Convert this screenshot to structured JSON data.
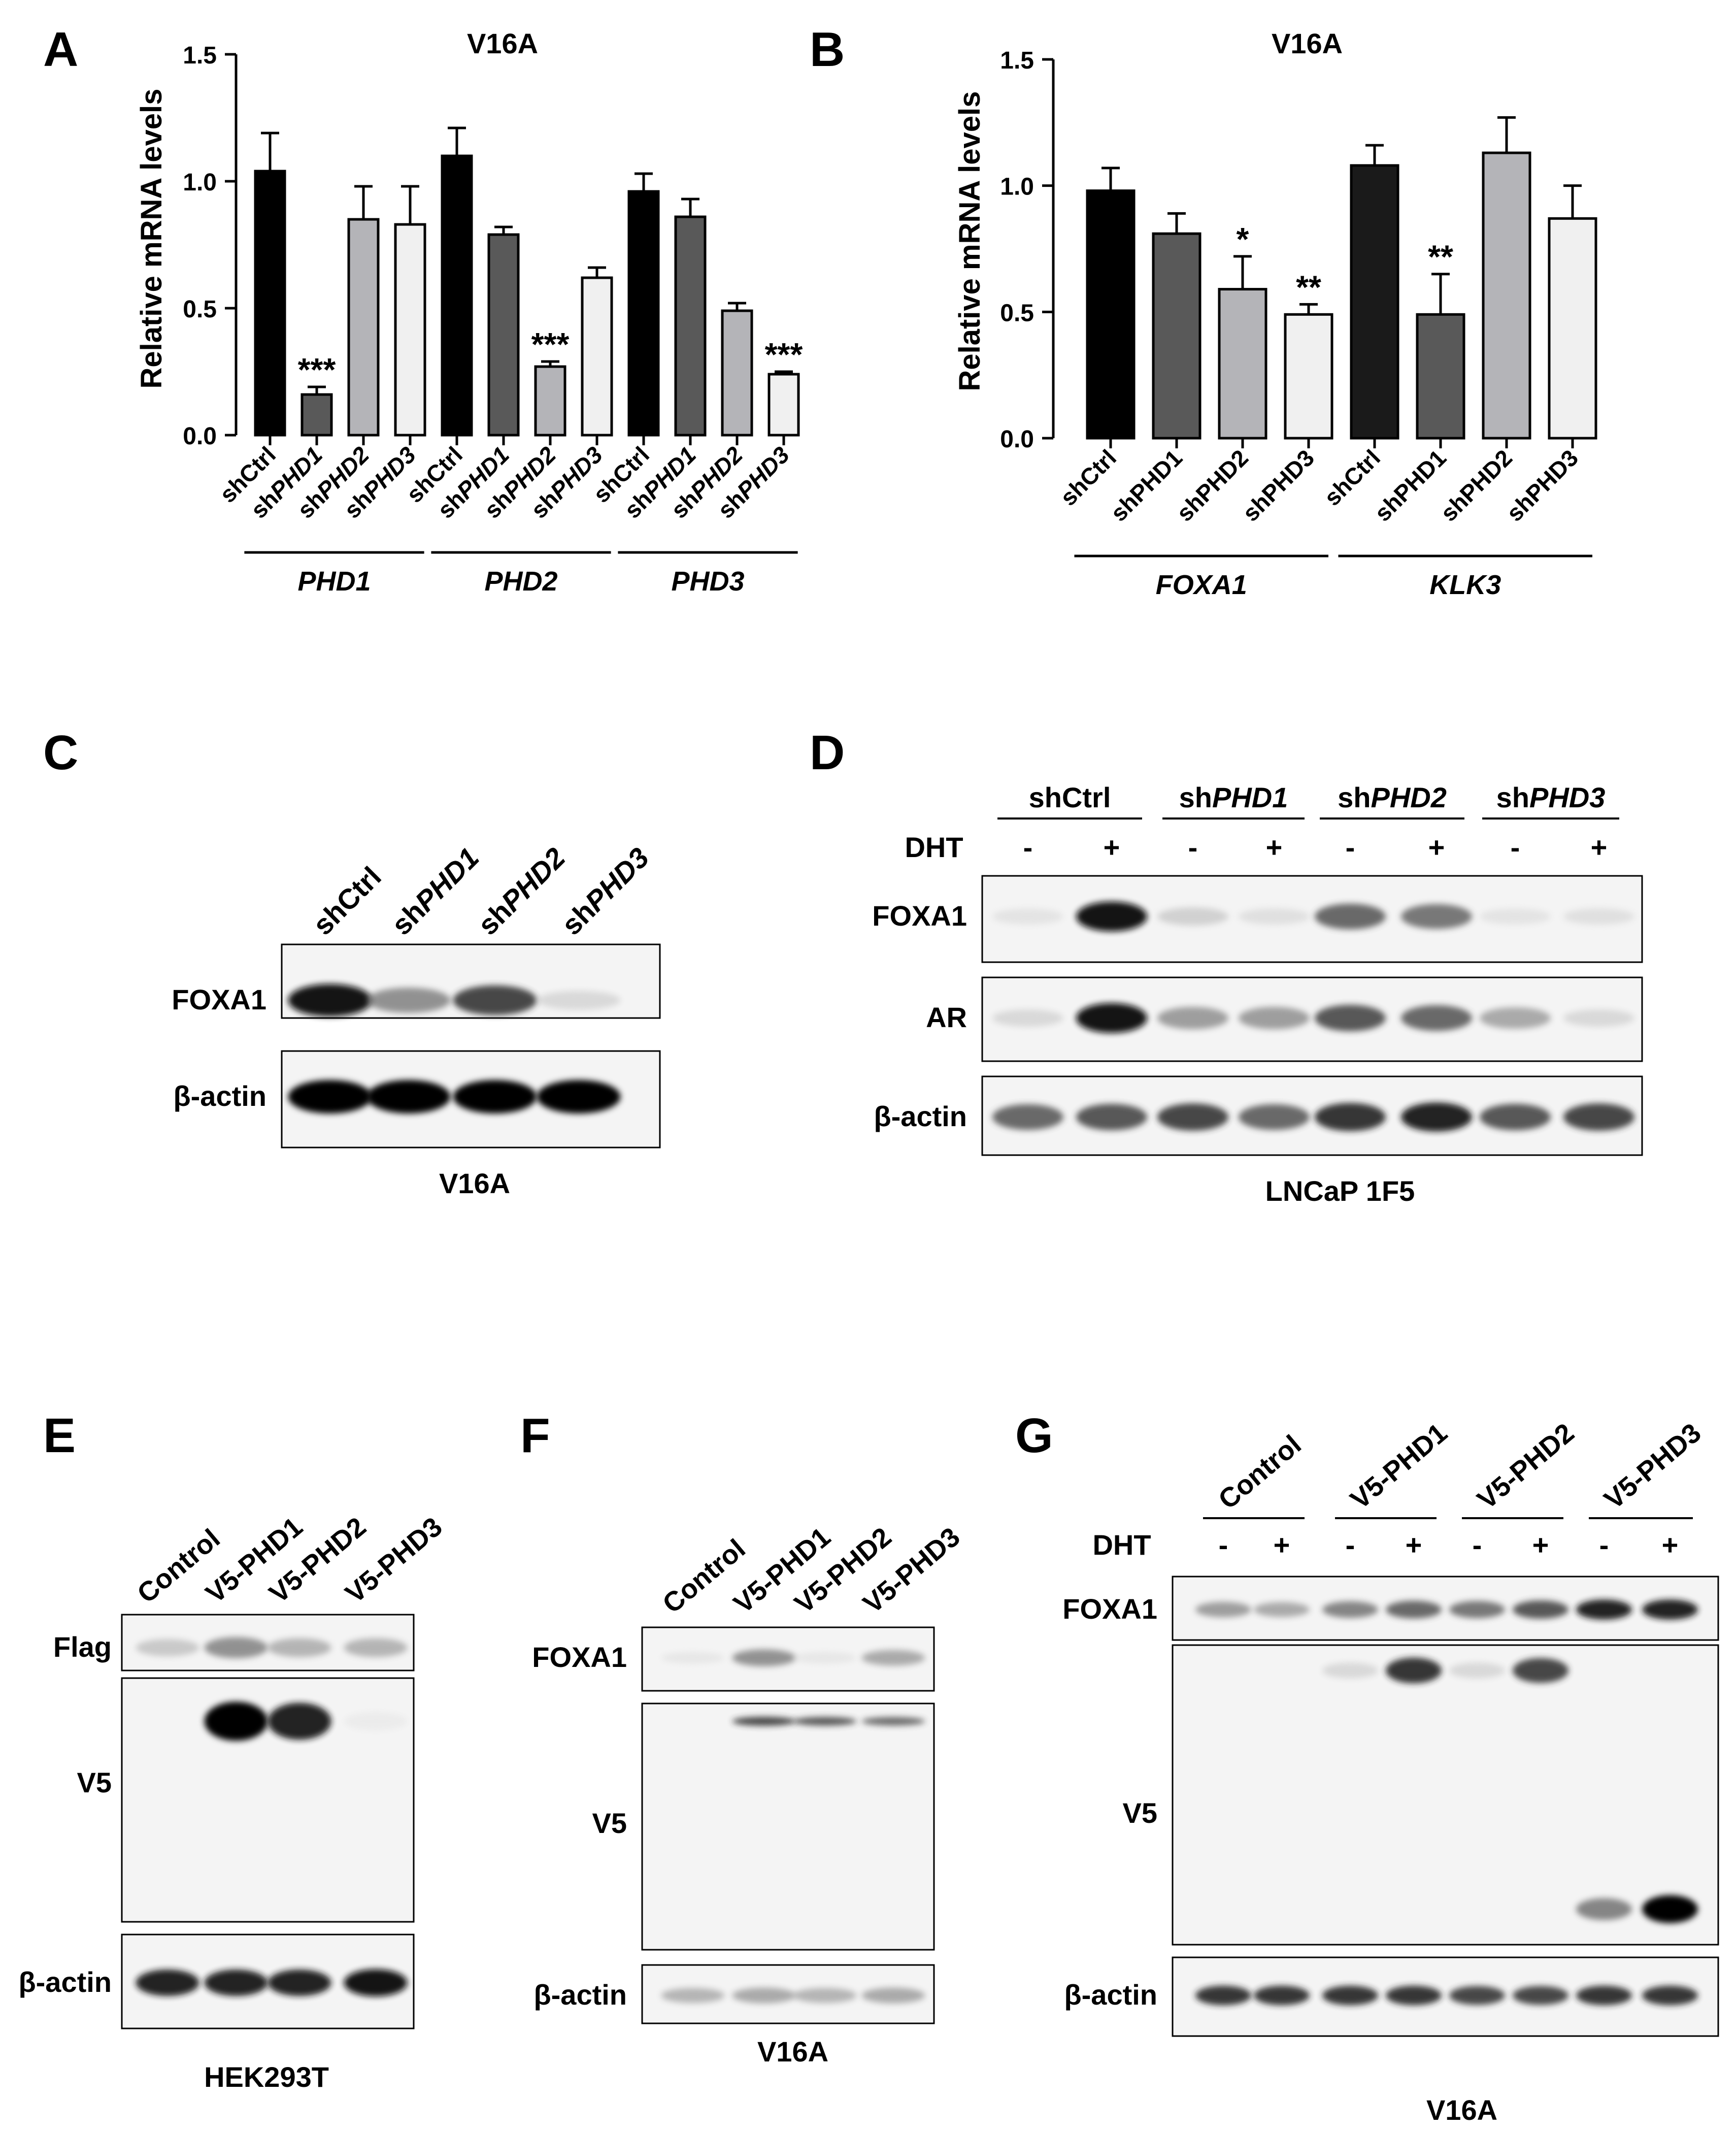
{
  "panels": {
    "A": {
      "letter": "A",
      "chart_data": {
        "type": "bar",
        "title": "V16A",
        "ylabel": "Relative mRNA levels",
        "ylim": [
          0,
          1.5
        ],
        "yticks": [
          "0.0",
          "0.5",
          "1.0",
          "1.5"
        ],
        "groups": [
          {
            "name": "PHD1",
            "italic": true,
            "bars": [
              {
                "prefix": "sh",
                "suffix": "Ctrl",
                "suffix_italic": false,
                "value": 1.04,
                "error": 0.15,
                "fill": "#000000",
                "sig": ""
              },
              {
                "prefix": "sh",
                "suffix": "PHD1",
                "suffix_italic": true,
                "value": 0.16,
                "error": 0.03,
                "fill": "#595959",
                "sig": "***"
              },
              {
                "prefix": "sh",
                "suffix": "PHD2",
                "suffix_italic": true,
                "value": 0.85,
                "error": 0.13,
                "fill": "#b4b4b8",
                "sig": ""
              },
              {
                "prefix": "sh",
                "suffix": "PHD3",
                "suffix_italic": true,
                "value": 0.83,
                "error": 0.15,
                "fill": "#f0f0f0",
                "sig": ""
              }
            ]
          },
          {
            "name": "PHD2",
            "italic": true,
            "bars": [
              {
                "prefix": "sh",
                "suffix": "Ctrl",
                "suffix_italic": false,
                "value": 1.1,
                "error": 0.11,
                "fill": "#000000",
                "sig": ""
              },
              {
                "prefix": "sh",
                "suffix": "PHD1",
                "suffix_italic": true,
                "value": 0.79,
                "error": 0.03,
                "fill": "#595959",
                "sig": ""
              },
              {
                "prefix": "sh",
                "suffix": "PHD2",
                "suffix_italic": true,
                "value": 0.27,
                "error": 0.02,
                "fill": "#b4b4b8",
                "sig": "***"
              },
              {
                "prefix": "sh",
                "suffix": "PHD3",
                "suffix_italic": true,
                "value": 0.62,
                "error": 0.04,
                "fill": "#f0f0f0",
                "sig": ""
              }
            ]
          },
          {
            "name": "PHD3",
            "italic": true,
            "bars": [
              {
                "prefix": "sh",
                "suffix": "Ctrl",
                "suffix_italic": false,
                "value": 0.96,
                "error": 0.07,
                "fill": "#000000",
                "sig": ""
              },
              {
                "prefix": "sh",
                "suffix": "PHD1",
                "suffix_italic": true,
                "value": 0.86,
                "error": 0.07,
                "fill": "#595959",
                "sig": ""
              },
              {
                "prefix": "sh",
                "suffix": "PHD2",
                "suffix_italic": true,
                "value": 0.49,
                "error": 0.03,
                "fill": "#b4b4b8",
                "sig": ""
              },
              {
                "prefix": "sh",
                "suffix": "PHD3",
                "suffix_italic": true,
                "value": 0.24,
                "error": 0.01,
                "fill": "#f0f0f0",
                "sig": "***"
              }
            ]
          }
        ]
      }
    },
    "B": {
      "letter": "B",
      "chart_data": {
        "type": "bar",
        "title": "V16A",
        "ylabel": "Relative mRNA levels",
        "ylim": [
          0,
          1.5
        ],
        "yticks": [
          "0.0",
          "0.5",
          "1.0",
          "1.5"
        ],
        "groups": [
          {
            "name": "FOXA1",
            "italic": true,
            "bars": [
              {
                "prefix": "sh",
                "suffix": "Ctrl",
                "suffix_italic": false,
                "value": 0.98,
                "error": 0.09,
                "fill": "#000000",
                "sig": ""
              },
              {
                "prefix": "sh",
                "suffix": "PHD1",
                "suffix_italic": false,
                "value": 0.81,
                "error": 0.08,
                "fill": "#595959",
                "sig": ""
              },
              {
                "prefix": "sh",
                "suffix": "PHD2",
                "suffix_italic": false,
                "value": 0.59,
                "error": 0.13,
                "fill": "#b4b4b8",
                "sig": "*"
              },
              {
                "prefix": "sh",
                "suffix": "PHD3",
                "suffix_italic": false,
                "value": 0.49,
                "error": 0.04,
                "fill": "#f0f0f0",
                "sig": "**"
              }
            ]
          },
          {
            "name": "KLK3",
            "italic": true,
            "bars": [
              {
                "prefix": "sh",
                "suffix": "Ctrl",
                "suffix_italic": false,
                "value": 1.08,
                "error": 0.08,
                "fill": "#1a1a1a",
                "sig": ""
              },
              {
                "prefix": "sh",
                "suffix": "PHD1",
                "suffix_italic": false,
                "value": 0.49,
                "error": 0.16,
                "fill": "#595959",
                "sig": "**"
              },
              {
                "prefix": "sh",
                "suffix": "PHD2",
                "suffix_italic": false,
                "value": 1.13,
                "error": 0.14,
                "fill": "#b4b4b8",
                "sig": ""
              },
              {
                "prefix": "sh",
                "suffix": "PHD3",
                "suffix_italic": false,
                "value": 0.87,
                "error": 0.13,
                "fill": "#f0f0f0",
                "sig": ""
              }
            ]
          }
        ]
      }
    },
    "C": {
      "letter": "C",
      "lanes": [
        {
          "prefix": "sh",
          "suffix": "Ctrl",
          "suffix_italic": false
        },
        {
          "prefix": "sh",
          "suffix": "PHD1",
          "suffix_italic": true
        },
        {
          "prefix": "sh",
          "suffix": "PHD2",
          "suffix_italic": true
        },
        {
          "prefix": "sh",
          "suffix": "PHD3",
          "suffix_italic": true
        }
      ],
      "blots": [
        {
          "label": "FOXA1",
          "intensities": [
            0.95,
            0.55,
            0.8,
            0.2
          ]
        },
        {
          "label": "β-actin",
          "intensities": [
            1,
            1,
            1,
            1
          ]
        }
      ],
      "cell_line": "V16A"
    },
    "D": {
      "letter": "D",
      "groups": [
        {
          "prefix": "sh",
          "suffix": "Ctrl",
          "suffix_italic": false
        },
        {
          "prefix": "sh",
          "suffix": "PHD1",
          "suffix_italic": true
        },
        {
          "prefix": "sh",
          "suffix": "PHD2",
          "suffix_italic": true
        },
        {
          "prefix": "sh",
          "suffix": "PHD3",
          "suffix_italic": true
        }
      ],
      "treatment_label": "DHT",
      "treatment": [
        "-",
        "+",
        "-",
        "+",
        "-",
        "+",
        "-",
        "+"
      ],
      "blots": [
        {
          "label": "FOXA1",
          "intensities": [
            0.12,
            0.95,
            0.25,
            0.15,
            0.7,
            0.65,
            0.12,
            0.15
          ]
        },
        {
          "label": "AR",
          "intensities": [
            0.2,
            0.95,
            0.5,
            0.5,
            0.75,
            0.7,
            0.45,
            0.2
          ]
        },
        {
          "label": "β-actin",
          "intensities": [
            0.7,
            0.75,
            0.8,
            0.7,
            0.85,
            0.9,
            0.75,
            0.8
          ]
        }
      ],
      "cell_line": "LNCaP 1F5"
    },
    "E": {
      "letter": "E",
      "lanes": [
        "Control",
        "V5-PHD1",
        "V5-PHD2",
        "V5-PHD3"
      ],
      "blots": [
        {
          "label": "Flag",
          "intensities": [
            0.3,
            0.55,
            0.4,
            0.4
          ]
        },
        {
          "label": "V5",
          "intensities": [
            0,
            1,
            0.9,
            0.05
          ]
        },
        {
          "label": "β-actin",
          "intensities": [
            0.9,
            0.9,
            0.9,
            0.95
          ]
        }
      ],
      "cell_line": "HEK293T"
    },
    "F": {
      "letter": "F",
      "lanes": [
        "Control",
        "V5-PHD1",
        "V5-PHD2",
        "V5-PHD3"
      ],
      "blots": [
        {
          "label": "FOXA1",
          "intensities": [
            0.1,
            0.55,
            0.1,
            0.45
          ]
        },
        {
          "label": "V5",
          "intensities": [
            0,
            0.8,
            0.75,
            0.7
          ]
        },
        {
          "label": "β-actin",
          "intensities": [
            0.4,
            0.45,
            0.4,
            0.45
          ]
        }
      ],
      "cell_line": "V16A"
    },
    "G": {
      "letter": "G",
      "groups": [
        "Control",
        "V5-PHD1",
        "V5-PHD2",
        "V5-PHD3"
      ],
      "treatment_label": "DHT",
      "treatment": [
        "-",
        "+",
        "-",
        "+",
        "-",
        "+",
        "-",
        "+"
      ],
      "blots": [
        {
          "label": "FOXA1",
          "intensities": [
            0.5,
            0.45,
            0.6,
            0.7,
            0.65,
            0.75,
            0.9,
            0.9
          ]
        },
        {
          "label": "V5",
          "intensities": [
            0,
            0,
            0.2,
            0.85,
            0.2,
            0.8,
            0.6,
            1
          ]
        },
        {
          "label": "β-actin",
          "intensities": [
            0.85,
            0.85,
            0.85,
            0.85,
            0.8,
            0.8,
            0.85,
            0.85
          ]
        }
      ],
      "cell_line": "V16A"
    }
  }
}
